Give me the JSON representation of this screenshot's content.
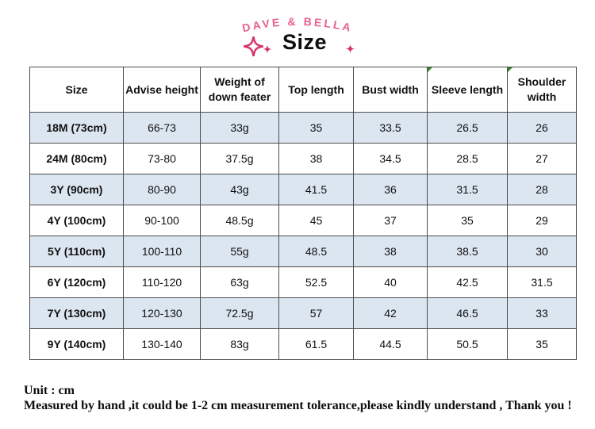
{
  "brand": {
    "name": "DAVE & BELLA",
    "color": "#e8618c"
  },
  "title": "Size",
  "icons": {
    "sparkle_large_left": "sparkle",
    "sparkle_small_left": "sparkle",
    "sparkle_small_right": "sparkle",
    "sparkle_color": "#d6336c",
    "header_corner_flag_color": "#2e8b2e"
  },
  "table": {
    "columns": [
      "Size",
      "Advise height",
      "Weight of down feater",
      "Top length",
      "Bust width",
      "Sleeve length",
      "Shoulder width"
    ],
    "rows": [
      [
        "18M (73cm)",
        "66-73",
        "33g",
        "35",
        "33.5",
        "26.5",
        "26"
      ],
      [
        "24M (80cm)",
        "73-80",
        "37.5g",
        "38",
        "34.5",
        "28.5",
        "27"
      ],
      [
        "3Y (90cm)",
        "80-90",
        "43g",
        "41.5",
        "36",
        "31.5",
        "28"
      ],
      [
        "4Y (100cm)",
        "90-100",
        "48.5g",
        "45",
        "37",
        "35",
        "29"
      ],
      [
        "5Y (110cm)",
        "100-110",
        "55g",
        "48.5",
        "38",
        "38.5",
        "30"
      ],
      [
        "6Y (120cm)",
        "110-120",
        "63g",
        "52.5",
        "40",
        "42.5",
        "31.5"
      ],
      [
        "7Y (130cm)",
        "120-130",
        "72.5g",
        "57",
        "42",
        "46.5",
        "33"
      ],
      [
        "9Y (140cm)",
        "130-140",
        "83g",
        "61.5",
        "44.5",
        "50.5",
        "35"
      ]
    ],
    "stripe_color": "#dce6f1",
    "border_color": "#4d4d4d"
  },
  "footer": {
    "unit": "Unit : cm",
    "note": "Measured by hand ,it could be 1-2 cm measurement tolerance,please kindly understand , Thank you !"
  }
}
